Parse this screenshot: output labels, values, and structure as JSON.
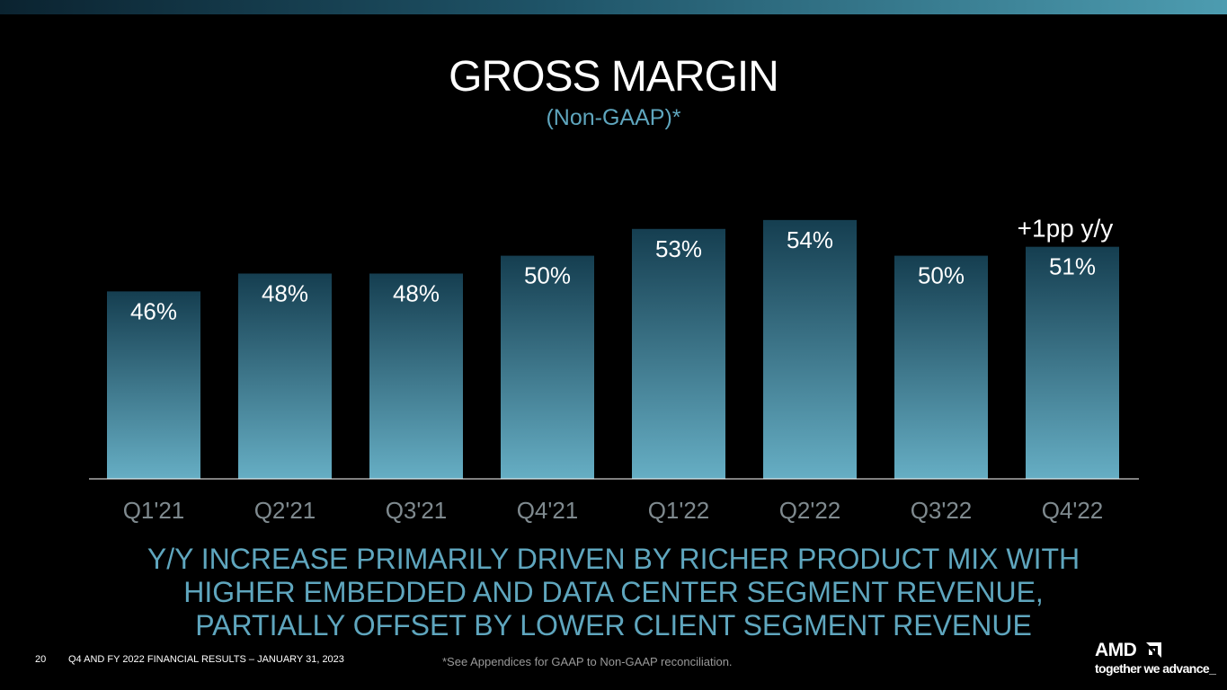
{
  "slide": {
    "title": "GROSS MARGIN",
    "subtitle": "(Non-GAAP)*",
    "headline_lines": [
      "Y/Y INCREASE PRIMARILY DRIVEN BY RICHER PRODUCT MIX WITH",
      "HIGHER EMBEDDED AND DATA CENTER SEGMENT REVENUE,",
      "PARTIALLY OFFSET BY LOWER CLIENT SEGMENT REVENUE"
    ],
    "page_number": "20",
    "footer": "Q4 AND FY 2022 FINANCIAL RESULTS – JANUARY 31, 2023",
    "footnote": "*See Appendices for GAAP to Non-GAAP reconciliation.",
    "logo": {
      "wordmark": "AMD",
      "tagline": "together we advance_"
    },
    "colors": {
      "accent": "#5fa6be",
      "bar_top": "#153e50",
      "bar_bottom": "#66aec4",
      "background": "#000000"
    }
  },
  "chart_data": {
    "type": "bar",
    "categories": [
      "Q1'21",
      "Q2'21",
      "Q3'21",
      "Q4'21",
      "Q1'22",
      "Q2'22",
      "Q3'22",
      "Q4'22"
    ],
    "values": [
      46,
      48,
      48,
      50,
      53,
      54,
      50,
      51
    ],
    "data_labels": [
      "46%",
      "48%",
      "48%",
      "50%",
      "53%",
      "54%",
      "50%",
      "51%"
    ],
    "annotation": {
      "text": "+1pp y/y",
      "category": "Q4'22"
    },
    "title": "GROSS MARGIN",
    "subtitle": "(Non-GAAP)*",
    "xlabel": "",
    "ylabel": "",
    "ylim": [
      25,
      56
    ],
    "grid": false,
    "legend": "none"
  }
}
